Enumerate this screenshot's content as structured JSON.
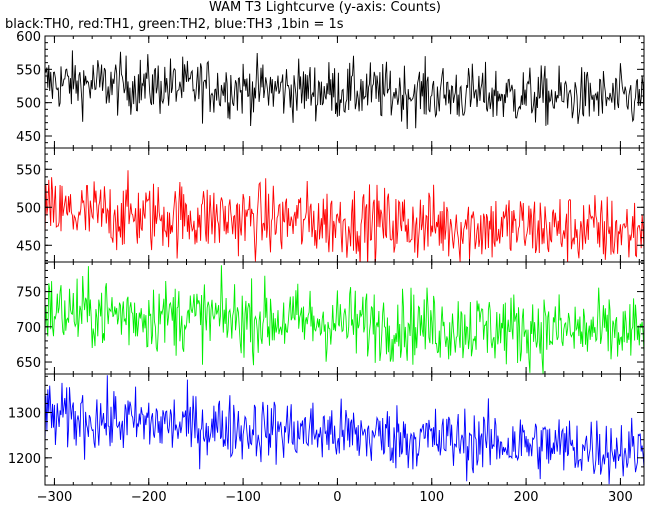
{
  "title": "WAM T3 Lightcurve (y-axis: Counts)",
  "subtitle": "black:TH0, red:TH1, green:TH2, blue:TH3 ,1bin = 1s",
  "chart_data": {
    "type": "line",
    "x_range": [
      -310,
      325
    ],
    "x_ticks": [
      -300,
      -200,
      -100,
      0,
      100,
      200,
      300
    ],
    "x_tick_labels": [
      "−300",
      "−200",
      "−100",
      "0",
      "100",
      "200",
      "300"
    ],
    "bin_size_s": 1,
    "series": [
      {
        "name": "TH0",
        "color": "#000000",
        "ylim": [
          432,
          600
        ],
        "y_ticks": [
          450,
          500,
          550,
          600
        ],
        "mean_start": 530,
        "mean_end": 505,
        "noise": 22
      },
      {
        "name": "TH1",
        "color": "#ff0000",
        "ylim": [
          428,
          578
        ],
        "y_ticks": [
          450,
          500,
          550
        ],
        "mean_start": 493,
        "mean_end": 468,
        "noise": 24
      },
      {
        "name": "TH2",
        "color": "#00ee00",
        "ylim": [
          633,
          792
        ],
        "y_ticks": [
          650,
          700,
          750
        ],
        "mean_start": 722,
        "mean_end": 690,
        "noise": 26
      },
      {
        "name": "TH3",
        "color": "#0000ff",
        "ylim": [
          1140,
          1385
        ],
        "y_ticks": [
          1200,
          1300
        ],
        "mean_start": 1290,
        "mean_end": 1215,
        "noise": 36
      }
    ]
  }
}
